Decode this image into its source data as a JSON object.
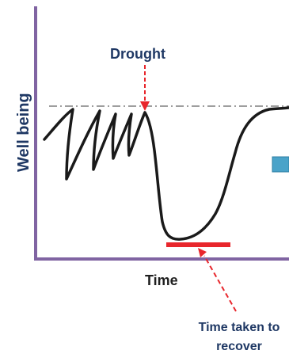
{
  "axis": {
    "y_label": "Well being",
    "x_label": "Time"
  },
  "annotations": {
    "drought": "Drought",
    "recovery_line1": "Time taken to",
    "recovery_line2": "recover"
  },
  "colors": {
    "axis": "#8064a2",
    "curve": "#1a1a1a",
    "baseline": "#7f7f7f",
    "drought_arrow": "#e8262c",
    "recovery_bar": "#e8262c",
    "recovery_arrow": "#e8262c",
    "side_box": "#4aa3c9"
  }
}
